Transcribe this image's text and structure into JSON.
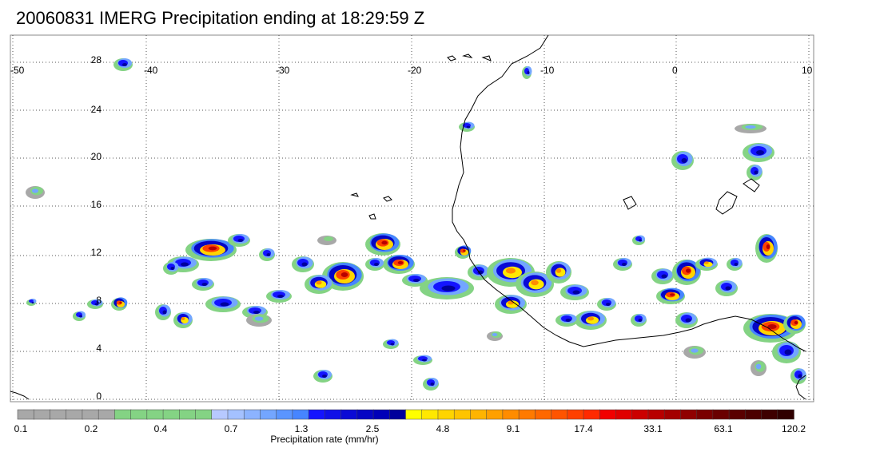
{
  "title": "20060831 IMERG Precipitation ending at 18:29:59 Z",
  "map": {
    "lon_ticks": [
      "-50",
      "-40",
      "-30",
      "-20",
      "-10",
      "0",
      "10"
    ],
    "lat_ticks": [
      "28",
      "24",
      "20",
      "16",
      "12",
      "8",
      "4",
      "0"
    ],
    "lon_range": [
      -50,
      10
    ],
    "lat_range": [
      -0.5,
      30
    ],
    "grid": true,
    "gridline_style": "dotted"
  },
  "colorbar": {
    "title": "Precipitation rate (mm/hr)",
    "tick_labels": [
      "0.1",
      "0.2",
      "0.4",
      "0.7",
      "1.3",
      "2.5",
      "4.8",
      "9.1",
      "17.4",
      "33.1",
      "63.1",
      "120.2"
    ],
    "colors": [
      "#a8a8a8",
      "#a8a8a8",
      "#a8a8a8",
      "#a8a8a8",
      "#a8a8a8",
      "#a8a8a8",
      "#84d384",
      "#84d384",
      "#84d384",
      "#84d384",
      "#84d384",
      "#84d384",
      "#b7c9ff",
      "#a4c1ff",
      "#8cb3ff",
      "#73a6ff",
      "#5a95ff",
      "#4685ff",
      "#1414ff",
      "#1010e8",
      "#0a0ad6",
      "#0505c4",
      "#0000b8",
      "#00009c",
      "#ffff00",
      "#ffe800",
      "#ffd400",
      "#ffc400",
      "#ffb400",
      "#ffa000",
      "#ff8c00",
      "#ff7a00",
      "#ff6800",
      "#ff5400",
      "#ff4000",
      "#ff2a00",
      "#f20000",
      "#e00000",
      "#cc0000",
      "#b80000",
      "#a40000",
      "#900000",
      "#7a0000",
      "#6a0000",
      "#5a0000",
      "#4c0000",
      "#3e0000",
      "#300000"
    ]
  }
}
